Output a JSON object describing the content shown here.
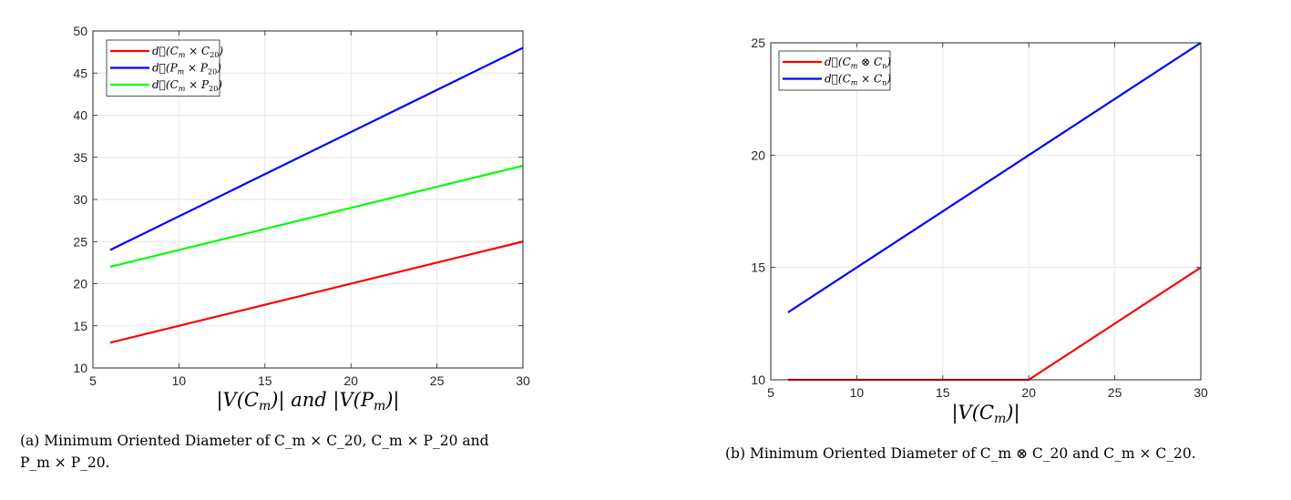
{
  "chart_data": [
    {
      "type": "line",
      "id": "a",
      "xlabel": "|V(C_m)| and |V(P_m)|",
      "ylabel": "",
      "xlim": [
        5,
        30
      ],
      "ylim": [
        10,
        50
      ],
      "xticks": [
        5,
        10,
        15,
        20,
        25,
        30
      ],
      "yticks": [
        10,
        15,
        20,
        25,
        30,
        35,
        40,
        45,
        50
      ],
      "grid": true,
      "legend_position": "top-left",
      "series": [
        {
          "name": "d⃗(C_m × C_20)",
          "color": "#ff0000",
          "x": [
            6,
            30
          ],
          "y": [
            13,
            25
          ]
        },
        {
          "name": "d⃗(P_m × P_20)",
          "color": "#0000ff",
          "x": [
            6,
            30
          ],
          "y": [
            24,
            48
          ]
        },
        {
          "name": "d⃗(C_m × P_20)",
          "color": "#00ff00",
          "x": [
            6,
            30
          ],
          "y": [
            22,
            34
          ]
        }
      ],
      "caption_line1": "(a) Minimum Oriented Diameter of C_m × C_20, C_m × P_20 and",
      "caption_line2": "P_m × P_20."
    },
    {
      "type": "line",
      "id": "b",
      "xlabel": "|V(C_m)|",
      "ylabel": "",
      "xlim": [
        5,
        30
      ],
      "ylim": [
        10,
        25
      ],
      "xticks": [
        5,
        10,
        15,
        20,
        25,
        30
      ],
      "yticks": [
        10,
        15,
        20,
        25
      ],
      "grid": true,
      "legend_position": "top-left",
      "series": [
        {
          "name": "d⃗(C_m ⊗ C_n)",
          "color": "#ff0000",
          "x": [
            6,
            20,
            30
          ],
          "y": [
            10,
            10,
            15
          ]
        },
        {
          "name": "d⃗(C_m × C_n)",
          "color": "#0000ff",
          "x": [
            6,
            30
          ],
          "y": [
            13,
            25
          ]
        }
      ],
      "caption": "(b) Minimum Oriented Diameter of C_m ⊗ C_20 and C_m × C_20."
    }
  ],
  "display": {
    "a": {
      "xlabel_parts": [
        "|V(C",
        "m",
        ")| and |V(P",
        "m",
        ")|"
      ],
      "legend": [
        {
          "pre": "d⃗(C",
          "sub1": "m",
          "mid": " × C",
          "sub2": "20",
          "post": ")"
        },
        {
          "pre": "d⃗(P",
          "sub1": "m",
          "mid": " × P",
          "sub2": "20",
          "post": ")"
        },
        {
          "pre": "d⃗(C",
          "sub1": "m",
          "mid": " × P",
          "sub2": "20",
          "post": ")"
        }
      ]
    },
    "b": {
      "xlabel_parts": [
        "|V(C",
        "m",
        ")|"
      ],
      "legend": [
        {
          "pre": "d⃗(C",
          "sub1": "m",
          "mid": " ⊗ C",
          "sub2": "n",
          "post": ")"
        },
        {
          "pre": "d⃗(C",
          "sub1": "m",
          "mid": " × C",
          "sub2": "n",
          "post": ")"
        }
      ]
    }
  }
}
